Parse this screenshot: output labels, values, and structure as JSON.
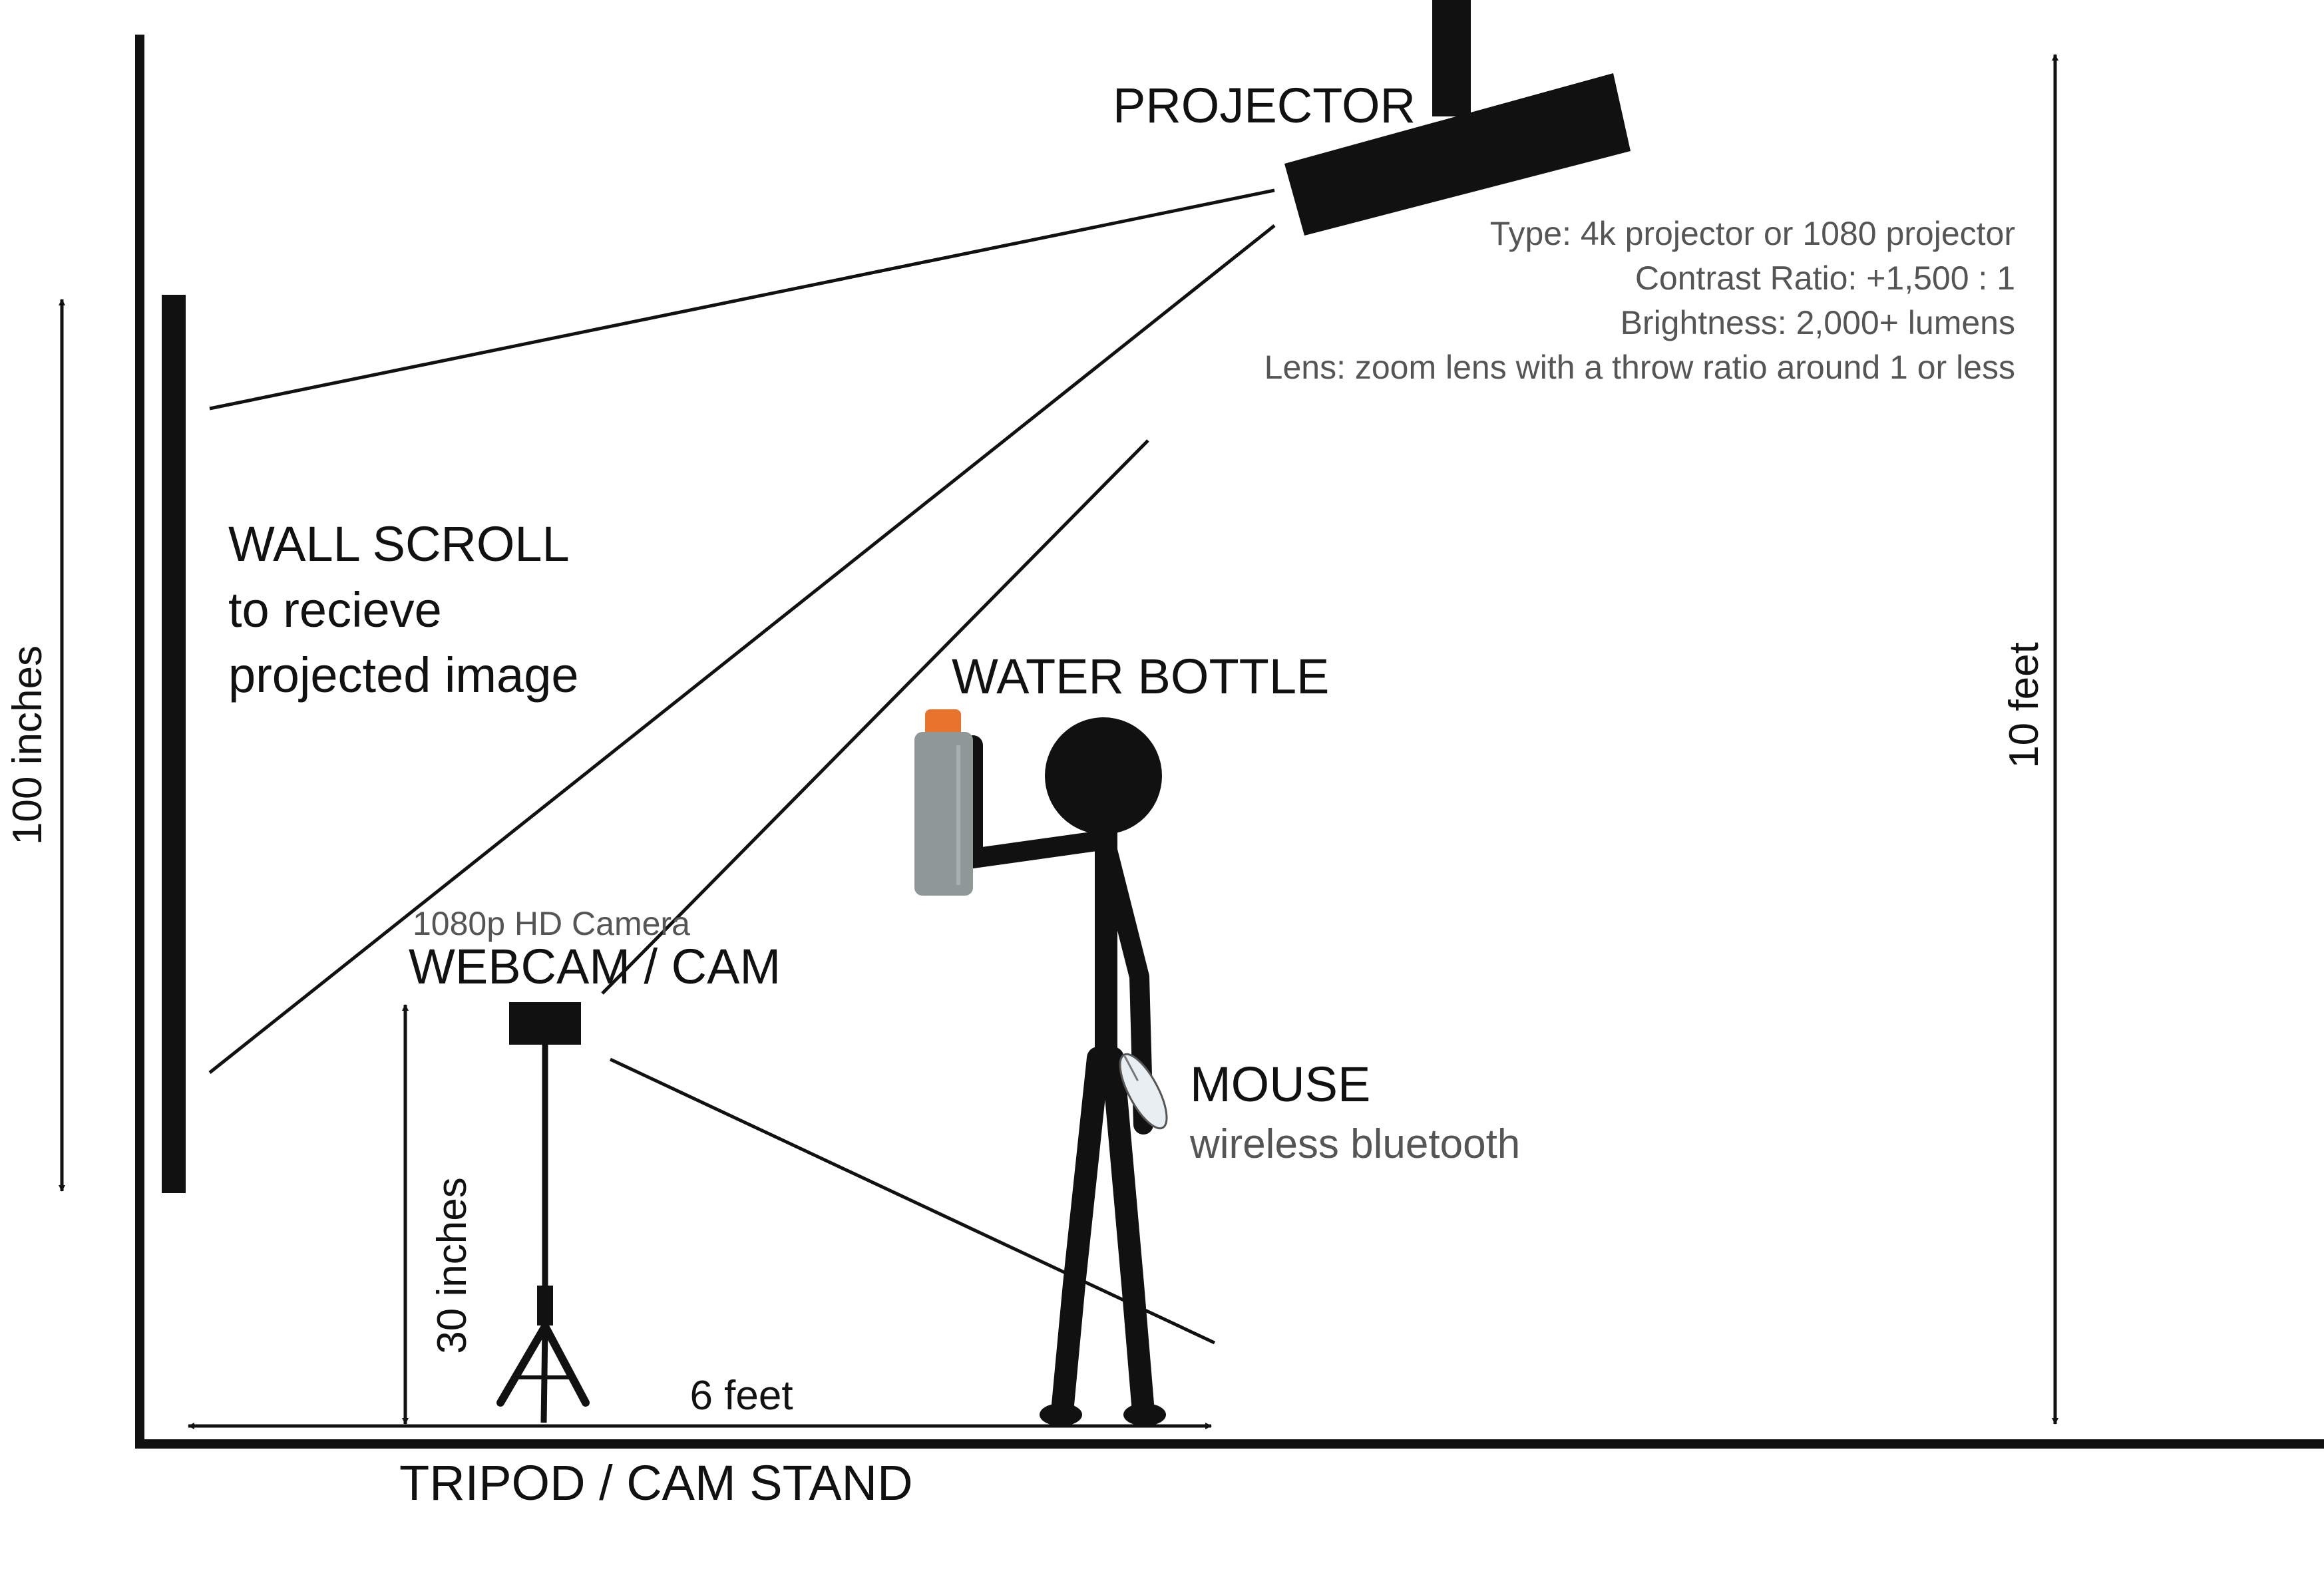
{
  "labels": {
    "projector": "PROJECTOR",
    "spec_type": "Type: 4k projector or 1080 projector",
    "spec_contrast": "Contrast Ratio: +1,500 : 1",
    "spec_brightness": "Brightness: 2,000+ lumens",
    "spec_lens": "Lens: zoom lens with a throw ratio around 1 or less",
    "wall_scroll_1": "WALL SCROLL",
    "wall_scroll_2": "to recieve",
    "wall_scroll_3": "projected image",
    "water_bottle": "WATER BOTTLE",
    "camera_spec": "1080p HD Camera",
    "webcam": "WEBCAM / CAM",
    "mouse": "MOUSE",
    "mouse_spec": "wireless bluetooth",
    "height_100": "100 inches",
    "height_10ft": "10 feet",
    "height_30": "30 inches",
    "distance_6ft": "6 feet",
    "tripod": "TRIPOD / CAM STAND"
  },
  "colors": {
    "ink": "#111111",
    "spec_text": "#555555",
    "bottle_body": "#8f9896",
    "bottle_cap": "#e8732a",
    "mouse_body": "#e9eef2"
  }
}
